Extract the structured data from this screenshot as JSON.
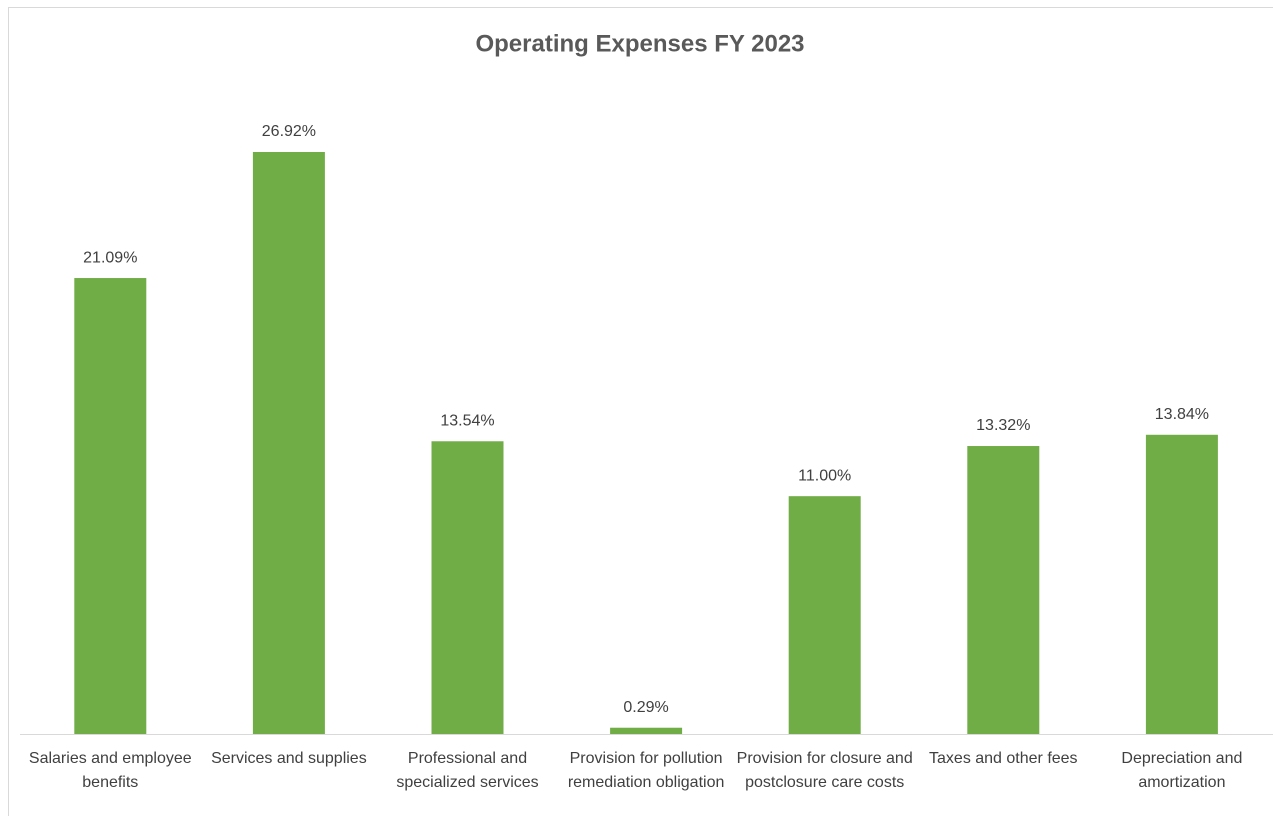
{
  "chart_data": {
    "type": "bar",
    "title": "Operating Expenses FY 2023",
    "categories": [
      "Salaries and employee benefits",
      "Services and supplies",
      "Professional and specialized services",
      "Provision for pollution remediation obligation",
      "Provision for closure and postclosure care costs",
      "Taxes and other fees",
      "Depreciation and amortization"
    ],
    "values": [
      21.09,
      26.92,
      13.54,
      0.29,
      11.0,
      13.32,
      13.84
    ],
    "value_labels": [
      "21.09%",
      "26.92%",
      "13.54%",
      "0.29%",
      "11.00%",
      "13.32%",
      "13.84%"
    ],
    "color": "#70ad47"
  }
}
